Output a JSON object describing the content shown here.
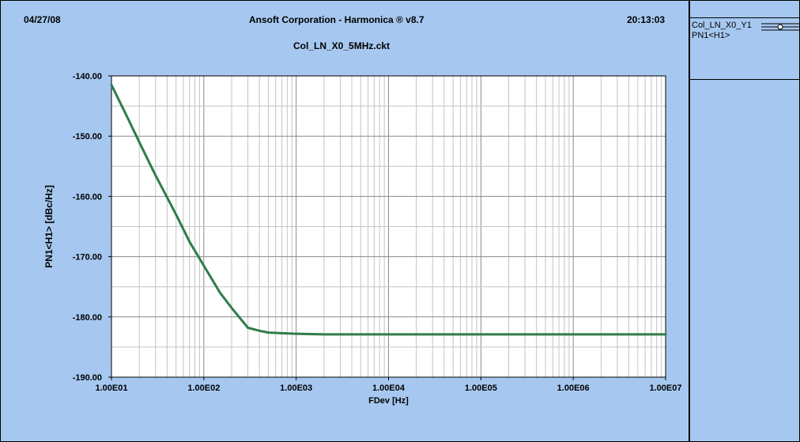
{
  "header": {
    "date": "04/27/08",
    "title": "Ansoft Corporation - Harmonica ® v8.7",
    "time": "20:13:03",
    "subtitle": "Col_LN_X0_5MHz.ckt"
  },
  "legend": {
    "trace_name": "Col_LN_X0_Y1",
    "measurement": "PN1<H1>"
  },
  "colors": {
    "background": "#a6c8f0",
    "plot_area": "#ffffff",
    "trace": "#2e7d4a"
  },
  "chart_data": {
    "type": "line",
    "xscale": "log",
    "xlim": [
      10,
      10000000
    ],
    "ylim": [
      -190,
      -140
    ],
    "xlabel": "FDev [Hz]",
    "ylabel": "PN1<H1> [dBc/Hz]",
    "xticks": [
      "1.00E01",
      "1.00E02",
      "1.00E03",
      "1.00E04",
      "1.00E05",
      "1.00E06",
      "1.00E07"
    ],
    "yticks": [
      "-140.00",
      "-150.00",
      "-160.00",
      "-170.00",
      "-180.00",
      "-190.00"
    ],
    "grid": true,
    "series": [
      {
        "x": [
          10,
          15,
          20,
          30,
          50,
          70,
          100,
          150,
          200,
          300,
          400,
          500,
          700,
          1000,
          2000,
          5000,
          10000,
          100000,
          1000000,
          10000000
        ],
        "y": [
          -141.5,
          -147,
          -151,
          -156.5,
          -163,
          -167.5,
          -171.5,
          -176,
          -178.5,
          -181.8,
          -182.3,
          -182.6,
          -182.7,
          -182.8,
          -182.9,
          -182.9,
          -182.9,
          -182.9,
          -182.9,
          -182.9
        ]
      }
    ]
  }
}
